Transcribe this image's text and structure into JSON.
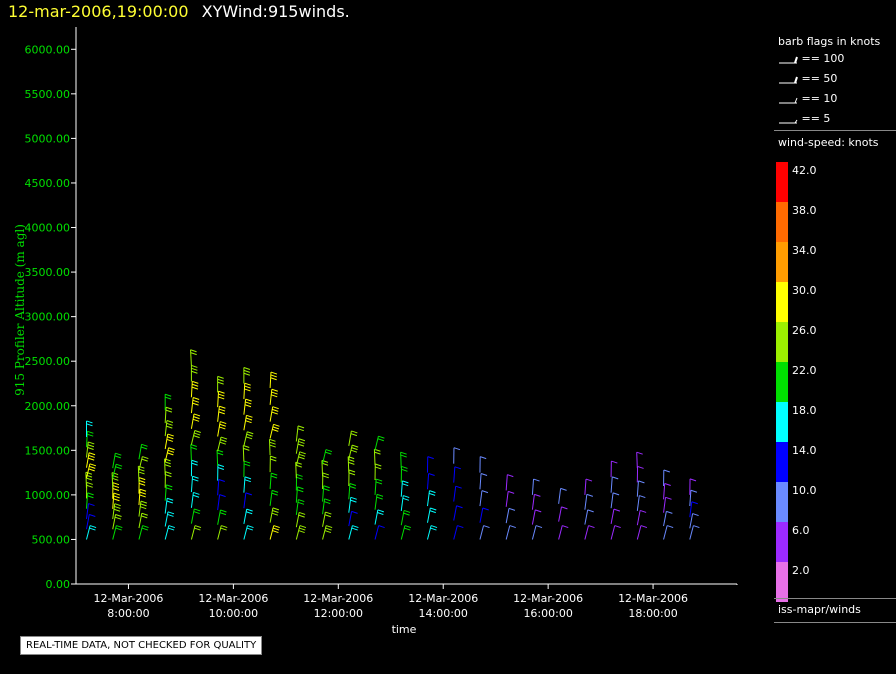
{
  "header": {
    "datetime": "12-mar-2006,19:00:00",
    "product": "XYWind:915winds."
  },
  "legend": {
    "flags_title": "barb flags in knots",
    "flags": [
      {
        "label": "== 100",
        "knots": 100
      },
      {
        "label": "== 50",
        "knots": 50
      },
      {
        "label": "== 10",
        "knots": 10
      },
      {
        "label": "== 5",
        "knots": 5
      }
    ],
    "speed_title": "wind-speed: knots",
    "speed_bins": [
      {
        "label": "42.0",
        "color": "#ff0000"
      },
      {
        "label": "38.0",
        "color": "#ff6a00"
      },
      {
        "label": "34.0",
        "color": "#ff9c00"
      },
      {
        "label": "30.0",
        "color": "#ffff00"
      },
      {
        "label": "26.0",
        "color": "#9cf000"
      },
      {
        "label": "22.0",
        "color": "#00e000"
      },
      {
        "label": "18.0",
        "color": "#00ffff"
      },
      {
        "label": "14.0",
        "color": "#0000ff"
      },
      {
        "label": "10.0",
        "color": "#6a8aff"
      },
      {
        "label": "6.0",
        "color": "#9c2aff"
      },
      {
        "label": "2.0",
        "color": "#e870e8"
      }
    ],
    "source": "iss-mapr/winds"
  },
  "banner": "REAL-TIME DATA, NOT CHECKED FOR QUALITY",
  "chart_data": {
    "type": "wind-barb profile time-height",
    "title": "XYWind:915winds.",
    "ylabel": "915 Profiler Altitude (m agl)",
    "xlabel": "time",
    "ylim": [
      0,
      6250
    ],
    "yticks": [
      "0.00",
      "500.00",
      "1000.00",
      "1500.00",
      "2000.00",
      "2500.00",
      "3000.00",
      "3500.00",
      "4000.00",
      "4500.00",
      "5000.00",
      "5500.00",
      "6000.00"
    ],
    "xlim_hours": [
      7.0,
      19.6
    ],
    "xticks": [
      {
        "date": "12-Mar-2006",
        "time": "8:00:00",
        "hour": 8
      },
      {
        "date": "12-Mar-2006",
        "time": "10:00:00",
        "hour": 10
      },
      {
        "date": "12-Mar-2006",
        "time": "12:00:00",
        "hour": 12
      },
      {
        "date": "12-Mar-2006",
        "time": "14:00:00",
        "hour": 14
      },
      {
        "date": "12-Mar-2006",
        "time": "16:00:00",
        "hour": 16
      },
      {
        "date": "12-Mar-2006",
        "time": "18:00:00",
        "hour": 18
      }
    ],
    "grid": false,
    "profiles": [
      {
        "hour": 7.2,
        "top": 1650,
        "speeds": [
          18,
          14,
          14,
          20,
          24,
          26,
          28,
          28,
          26,
          22,
          18
        ]
      },
      {
        "hour": 7.7,
        "top": 1300,
        "speeds": [
          22,
          24,
          26,
          28,
          28,
          26,
          22,
          20
        ]
      },
      {
        "hour": 8.2,
        "top": 1400,
        "speeds": [
          22,
          24,
          26,
          28,
          28,
          26,
          24,
          22
        ]
      },
      {
        "hour": 8.7,
        "top": 1950,
        "speeds": [
          18,
          16,
          16,
          20,
          24,
          26,
          28,
          28,
          26,
          24,
          22
        ]
      },
      {
        "hour": 9.2,
        "top": 2450,
        "speeds": [
          24,
          22,
          18,
          16,
          18,
          22,
          26,
          28,
          30,
          28,
          26,
          24
        ]
      },
      {
        "hour": 9.7,
        "top": 2150,
        "speeds": [
          24,
          20,
          14,
          14,
          18,
          22,
          26,
          28,
          30,
          28,
          26
        ]
      },
      {
        "hour": 10.2,
        "top": 2250,
        "speeds": [
          18,
          16,
          14,
          16,
          20,
          24,
          26,
          28,
          30,
          28,
          26
        ]
      },
      {
        "hour": 10.7,
        "top": 2200,
        "speeds": [
          30,
          26,
          22,
          22,
          24,
          26,
          28,
          30,
          30,
          28
        ]
      },
      {
        "hour": 11.2,
        "top": 1600,
        "speeds": [
          26,
          24,
          22,
          20,
          22,
          24,
          26,
          26,
          24
        ]
      },
      {
        "hour": 11.7,
        "top": 1350,
        "speeds": [
          26,
          24,
          22,
          22,
          24,
          24,
          22
        ]
      },
      {
        "hour": 12.2,
        "top": 1550,
        "speeds": [
          18,
          14,
          16,
          20,
          24,
          26,
          26,
          24
        ]
      },
      {
        "hour": 12.7,
        "top": 1500,
        "speeds": [
          14,
          16,
          20,
          22,
          24,
          24,
          22
        ]
      },
      {
        "hour": 13.2,
        "top": 1300,
        "speeds": [
          22,
          20,
          18,
          18,
          20,
          22
        ]
      },
      {
        "hour": 13.7,
        "top": 1250,
        "speeds": [
          18,
          16,
          16,
          14,
          14
        ]
      },
      {
        "hour": 14.2,
        "top": 1350,
        "speeds": [
          14,
          12,
          14,
          12,
          10
        ]
      },
      {
        "hour": 14.7,
        "top": 1250,
        "speeds": [
          10,
          12,
          10,
          8,
          8
        ]
      },
      {
        "hour": 15.2,
        "top": 1050,
        "speeds": [
          8,
          8,
          6,
          6
        ]
      },
      {
        "hour": 15.7,
        "top": 1000,
        "speeds": [
          8,
          6,
          6,
          8
        ]
      },
      {
        "hour": 16.2,
        "top": 900,
        "speeds": [
          6,
          6,
          8
        ]
      },
      {
        "hour": 16.7,
        "top": 1000,
        "speeds": [
          6,
          8,
          8,
          6
        ]
      },
      {
        "hour": 17.2,
        "top": 1200,
        "speeds": [
          6,
          6,
          8,
          8,
          6
        ]
      },
      {
        "hour": 17.7,
        "top": 1300,
        "speeds": [
          6,
          6,
          8,
          8,
          6,
          6
        ]
      },
      {
        "hour": 18.2,
        "top": 1100,
        "speeds": [
          8,
          8,
          6,
          6,
          8
        ]
      },
      {
        "hour": 18.7,
        "top": 1000,
        "speeds": [
          10,
          10,
          12,
          8,
          6
        ]
      }
    ]
  }
}
